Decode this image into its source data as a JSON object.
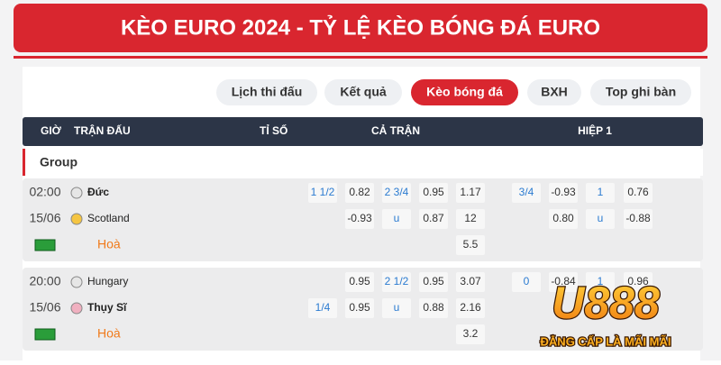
{
  "header": {
    "title": "KÈO EURO 2024 - TỶ LỆ KÈO BÓNG ĐÁ EURO"
  },
  "tabs": [
    {
      "label": "Lịch thi đấu",
      "active": false
    },
    {
      "label": "Kết quả",
      "active": false
    },
    {
      "label": "Kèo bóng đá",
      "active": true
    },
    {
      "label": "BXH",
      "active": false
    },
    {
      "label": "Top ghi bàn",
      "active": false
    }
  ],
  "table": {
    "columns": {
      "time": "GIỜ",
      "match": "TRẬN ĐẤU",
      "score": "TỈ SỐ",
      "full_time": "CẢ TRẬN",
      "half_time": "HIỆP 1"
    },
    "group": "Group",
    "matches": [
      {
        "time": "02:00",
        "date": "15/06",
        "home": "Đức",
        "away": "Scotland",
        "draw": "Hoà",
        "rows": [
          {
            "full_time": [
              "1 1/2",
              "0.82",
              "2 3/4",
              "0.95",
              "1.17"
            ],
            "half_time": [
              "3/4",
              "-0.93",
              "1",
              "0.76"
            ]
          },
          {
            "full_time": [
              null,
              "-0.93",
              "u",
              "0.87",
              "12"
            ],
            "half_time": [
              null,
              "0.80",
              "u",
              "-0.88"
            ]
          },
          {
            "full_time": [
              null,
              null,
              null,
              null,
              "5.5"
            ],
            "half_time": [
              null,
              null,
              null,
              null
            ]
          }
        ]
      },
      {
        "time": "20:00",
        "date": "15/06",
        "home": "Hungary",
        "away": "Thụy Sĩ",
        "draw": "Hoà",
        "rows": [
          {
            "full_time": [
              null,
              "0.95",
              "2 1/2",
              "0.95",
              "3.07"
            ],
            "half_time": [
              "0",
              "-0.84",
              "1",
              "0.96"
            ]
          },
          {
            "full_time": [
              "1/4",
              "0.95",
              "u",
              "0.88",
              "2.16"
            ],
            "half_time": [
              null,
              null,
              null,
              null
            ]
          },
          {
            "full_time": [
              null,
              null,
              null,
              null,
              "3.2"
            ],
            "half_time": [
              null,
              null,
              null,
              null
            ]
          }
        ]
      }
    ]
  },
  "logo": {
    "brand": "U888",
    "tagline": "ĐẲNG CẤP LÀ MÃI MÃI"
  }
}
